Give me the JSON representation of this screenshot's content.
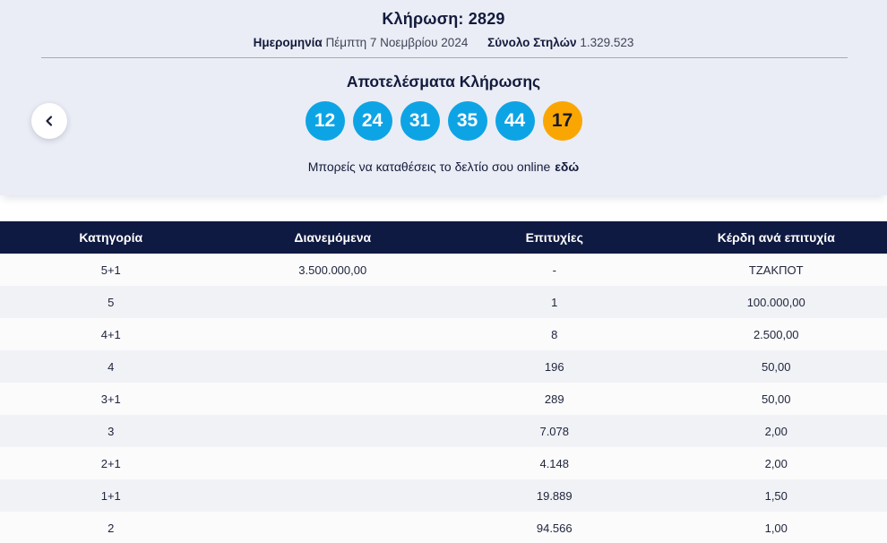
{
  "colors": {
    "navy": "#0f1a42",
    "navy_text": "#131a3c",
    "hero_bg": "#eaedf5",
    "ball_blue": "#0da4e5",
    "ball_orange": "#faa602",
    "row_base": "#fbfbfc",
    "row_alt": "#f1f2f6"
  },
  "header": {
    "draw_label": "Κλήρωση:",
    "draw_number": "2829",
    "date_label": "Ημερομηνία",
    "date_value": "Πέμπτη 7 Νοεμβρίου 2024",
    "columns_label": "Σύνολο Στηλών",
    "columns_value": "1.329.523"
  },
  "results": {
    "title": "Αποτελέσματα Κλήρωσης",
    "numbers": [
      "12",
      "24",
      "31",
      "35",
      "44"
    ],
    "joker": "17",
    "deposit_text": "Μπορείς να καταθέσεις το δελτίο σου online",
    "deposit_link": "εδώ"
  },
  "table": {
    "headers": [
      "Κατηγορία",
      "Διανεμόμενα",
      "Επιτυχίες",
      "Κέρδη ανά επιτυχία"
    ],
    "rows": [
      [
        "5+1",
        "3.500.000,00",
        "-",
        "ΤΖΑΚΠΟΤ"
      ],
      [
        "5",
        "",
        "1",
        "100.000,00"
      ],
      [
        "4+1",
        "",
        "8",
        "2.500,00"
      ],
      [
        "4",
        "",
        "196",
        "50,00"
      ],
      [
        "3+1",
        "",
        "289",
        "50,00"
      ],
      [
        "3",
        "",
        "7.078",
        "2,00"
      ],
      [
        "2+1",
        "",
        "4.148",
        "2,00"
      ],
      [
        "1+1",
        "",
        "19.889",
        "1,50"
      ],
      [
        "2",
        "",
        "94.566",
        "1,00"
      ]
    ]
  }
}
